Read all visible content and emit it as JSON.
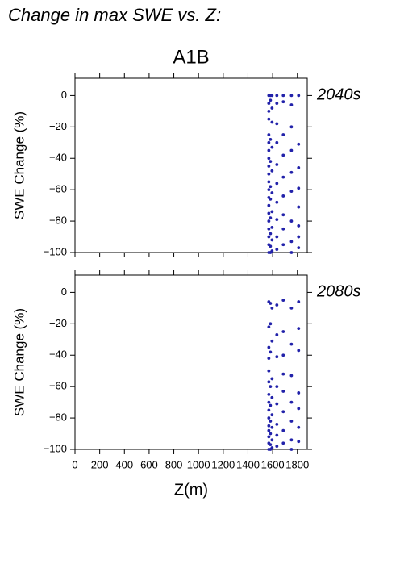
{
  "title": "Change in max SWE vs. Z:",
  "scenario": "A1B",
  "chart_data": [
    {
      "type": "scatter",
      "annotation": "2040s",
      "ylabel": "SWE Change (%)",
      "color": "#2222aa",
      "xlim": [
        0,
        1880
      ],
      "ylim": [
        -100,
        11
      ],
      "xticks": [
        0,
        200,
        400,
        600,
        800,
        1000,
        1200,
        1400,
        1600,
        1800
      ],
      "yticks": [
        {
          "value": -100,
          "label": "−100"
        },
        {
          "value": -80,
          "label": "−80"
        },
        {
          "value": -60,
          "label": "−60"
        },
        {
          "value": -40,
          "label": "−40"
        },
        {
          "value": -20,
          "label": "−20"
        },
        0
      ],
      "x": [
        1569,
        1569,
        1569,
        1569,
        1569,
        1569,
        1569,
        1569,
        1569,
        1569,
        1569,
        1569,
        1569,
        1569,
        1569,
        1569,
        1569,
        1569,
        1569,
        1569,
        1582,
        1582,
        1582,
        1582,
        1582,
        1582,
        1582,
        1582,
        1582,
        1582,
        1595,
        1595,
        1595,
        1595,
        1595,
        1595,
        1595,
        1595,
        1595,
        1595,
        1634,
        1634,
        1634,
        1634,
        1634,
        1634,
        1634,
        1634,
        1634,
        1634,
        1686,
        1686,
        1686,
        1686,
        1686,
        1686,
        1686,
        1686,
        1686,
        1752,
        1752,
        1752,
        1752,
        1752,
        1752,
        1752,
        1752,
        1752,
        1810,
        1810,
        1810,
        1810,
        1810,
        1810,
        1810,
        1810
      ],
      "y": [
        0,
        -5,
        -10,
        -15,
        -25,
        -30,
        -35,
        -40,
        -45,
        -50,
        -55,
        -60,
        -65,
        -70,
        -75,
        -80,
        -85,
        -90,
        -95,
        -100,
        0,
        -3,
        -28,
        -42,
        -58,
        -66,
        -78,
        -88,
        -96,
        -100,
        0,
        -8,
        -17,
        -33,
        -48,
        -62,
        -74,
        -84,
        -92,
        -99,
        0,
        -5,
        -18,
        -30,
        -44,
        -56,
        -68,
        -79,
        -90,
        -98,
        0,
        -4,
        -25,
        -38,
        -52,
        -64,
        -76,
        -85,
        -95,
        0,
        -6,
        -20,
        -35,
        -49,
        -61,
        -80,
        -93,
        -100,
        0,
        -31,
        -46,
        -59,
        -71,
        -83,
        -90,
        -97
      ]
    },
    {
      "type": "scatter",
      "annotation": "2080s",
      "ylabel": "SWE Change (%)",
      "xlabel": "Z(m)",
      "color": "#2222aa",
      "xlim": [
        0,
        1880
      ],
      "ylim": [
        -100,
        11
      ],
      "xticks": [
        0,
        200,
        400,
        600,
        800,
        1000,
        1200,
        1400,
        1600,
        1800
      ],
      "yticks": [
        {
          "value": -100,
          "label": "−100"
        },
        {
          "value": -80,
          "label": "−80"
        },
        {
          "value": -60,
          "label": "−60"
        },
        {
          "value": -40,
          "label": "−40"
        },
        {
          "value": -20,
          "label": "−20"
        },
        0
      ],
      "x": [
        1569,
        1569,
        1569,
        1569,
        1569,
        1569,
        1569,
        1569,
        1569,
        1569,
        1569,
        1569,
        1569,
        1569,
        1569,
        1582,
        1582,
        1582,
        1582,
        1582,
        1582,
        1582,
        1582,
        1582,
        1595,
        1595,
        1595,
        1595,
        1595,
        1595,
        1595,
        1595,
        1634,
        1634,
        1634,
        1634,
        1634,
        1634,
        1634,
        1634,
        1686,
        1686,
        1686,
        1686,
        1686,
        1686,
        1686,
        1686,
        1752,
        1752,
        1752,
        1752,
        1752,
        1752,
        1752,
        1810,
        1810,
        1810,
        1810,
        1810,
        1810,
        1810
      ],
      "y": [
        -6,
        -22,
        -35,
        -42,
        -50,
        -57,
        -65,
        -70,
        -75,
        -80,
        -85,
        -88,
        -92,
        -96,
        -100,
        -7,
        -20,
        -38,
        -60,
        -72,
        -82,
        -90,
        -97,
        -100,
        -10,
        -31,
        -55,
        -67,
        -78,
        -86,
        -94,
        -99,
        -8,
        -27,
        -41,
        -60,
        -71,
        -84,
        -91,
        -98,
        -5,
        -25,
        -40,
        -52,
        -63,
        -76,
        -88,
        -96,
        -10,
        -33,
        -53,
        -70,
        -82,
        -94,
        -100,
        -6,
        -23,
        -37,
        -64,
        -74,
        -86,
        -95
      ]
    }
  ]
}
